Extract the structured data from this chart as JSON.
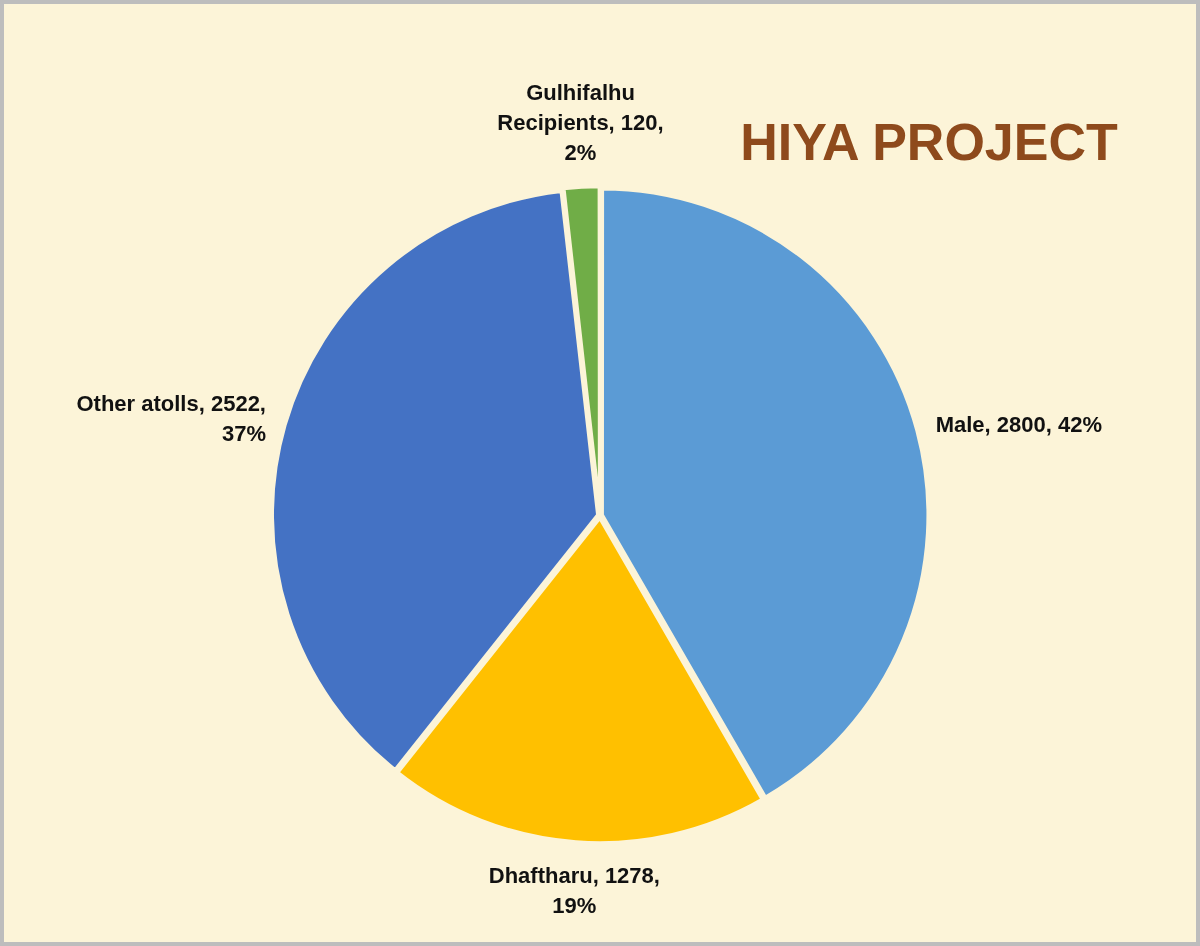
{
  "chart_data": {
    "type": "pie",
    "title": "HIYA PROJECT",
    "categories": [
      "Male",
      "Dhaftharu",
      "Other atolls",
      "Gulhifalhu Recipients"
    ],
    "values": [
      2800,
      1278,
      2522,
      120
    ],
    "value_labels": [
      "2800, 42%",
      "1278, 19%",
      "2522, 37%",
      "120, 2%"
    ],
    "colors": [
      "#5b9bd5",
      "#ffc000",
      "#4472c4",
      "#70ad47"
    ],
    "legend": false
  }
}
